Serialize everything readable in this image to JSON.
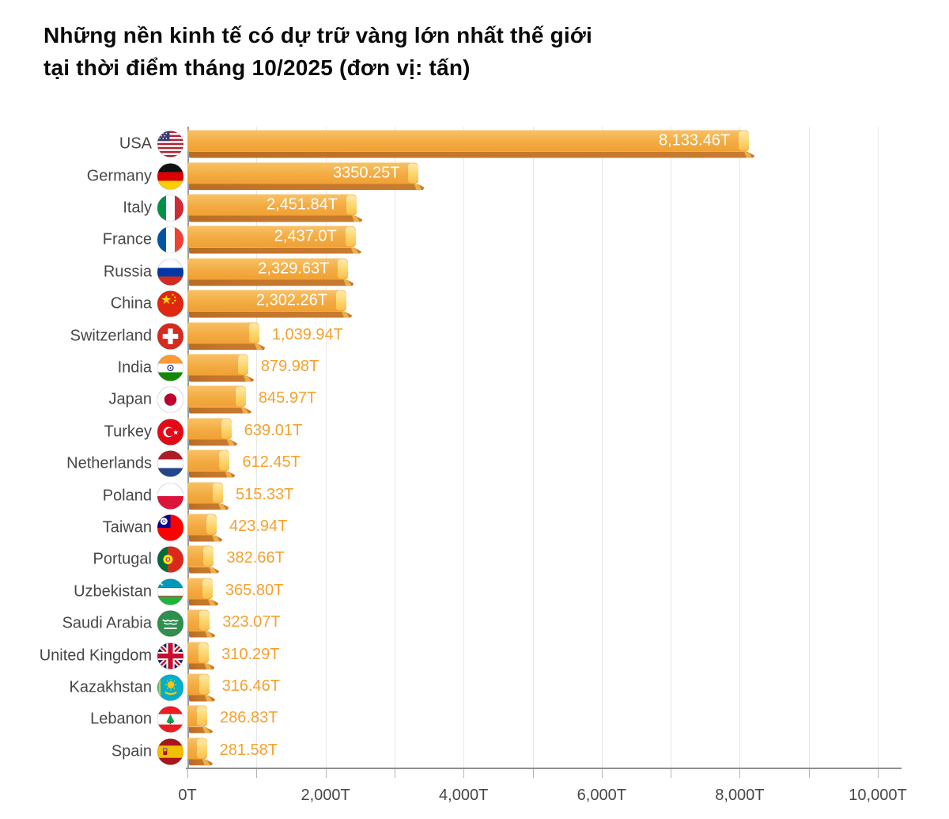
{
  "title": {
    "line1": "Những nền kinh tế có dự trữ vàng lớn nhất thế giới",
    "line2": "tại thời điểm tháng 10/2025 (đơn vị: tấn)"
  },
  "chart_data": {
    "type": "bar",
    "orientation": "horizontal",
    "unit": "tấn (T)",
    "title": "Những nền kinh tế có dự trữ vàng lớn nhất thế giới tại thời điểm tháng 10/2025 (đơn vị: tấn)",
    "xlabel": "",
    "ylabel": "",
    "xlim": [
      0,
      10000
    ],
    "grid": true,
    "grid_step": 1000,
    "x_ticks": [
      {
        "value": 0,
        "label": "0T"
      },
      {
        "value": 2000,
        "label": "2,000T"
      },
      {
        "value": 4000,
        "label": "4,000T"
      },
      {
        "value": 6000,
        "label": "6,000T"
      },
      {
        "value": 8000,
        "label": "8,000T"
      },
      {
        "value": 10000,
        "label": "10,000T"
      }
    ],
    "rows": [
      {
        "country": "USA",
        "flag": "usa",
        "value": 8133.46,
        "value_label": "8,133.46T",
        "label_inside": true
      },
      {
        "country": "Germany",
        "flag": "germany",
        "value": 3350.25,
        "value_label": "3350.25T",
        "label_inside": true
      },
      {
        "country": "Italy",
        "flag": "italy",
        "value": 2451.84,
        "value_label": "2,451.84T",
        "label_inside": true
      },
      {
        "country": "France",
        "flag": "france",
        "value": 2437.0,
        "value_label": "2,437.0T",
        "label_inside": true
      },
      {
        "country": "Russia",
        "flag": "russia",
        "value": 2329.63,
        "value_label": "2,329.63T",
        "label_inside": true
      },
      {
        "country": "China",
        "flag": "china",
        "value": 2302.26,
        "value_label": "2,302.26T",
        "label_inside": true
      },
      {
        "country": "Switzerland",
        "flag": "switzerland",
        "value": 1039.94,
        "value_label": "1,039.94T",
        "label_inside": false
      },
      {
        "country": "India",
        "flag": "india",
        "value": 879.98,
        "value_label": "879.98T",
        "label_inside": false
      },
      {
        "country": "Japan",
        "flag": "japan",
        "value": 845.97,
        "value_label": "845.97T",
        "label_inside": false
      },
      {
        "country": "Turkey",
        "flag": "turkey",
        "value": 639.01,
        "value_label": "639.01T",
        "label_inside": false
      },
      {
        "country": "Netherlands",
        "flag": "netherlands",
        "value": 612.45,
        "value_label": "612.45T",
        "label_inside": false
      },
      {
        "country": "Poland",
        "flag": "poland",
        "value": 515.33,
        "value_label": "515.33T",
        "label_inside": false
      },
      {
        "country": "Taiwan",
        "flag": "taiwan",
        "value": 423.94,
        "value_label": "423.94T",
        "label_inside": false
      },
      {
        "country": "Portugal",
        "flag": "portugal",
        "value": 382.66,
        "value_label": "382.66T",
        "label_inside": false
      },
      {
        "country": "Uzbekistan",
        "flag": "uzbekistan",
        "value": 365.8,
        "value_label": "365.80T",
        "label_inside": false
      },
      {
        "country": "Saudi Arabia",
        "flag": "saudi-arabia",
        "value": 323.07,
        "value_label": "323.07T",
        "label_inside": false
      },
      {
        "country": "United Kingdom",
        "flag": "uk",
        "value": 310.29,
        "value_label": "310.29T",
        "label_inside": false
      },
      {
        "country": "Kazakhstan",
        "flag": "kazakhstan",
        "value": 316.46,
        "value_label": "316.46T",
        "label_inside": false
      },
      {
        "country": "Lebanon",
        "flag": "lebanon",
        "value": 286.83,
        "value_label": "286.83T",
        "label_inside": false
      },
      {
        "country": "Spain",
        "flag": "spain",
        "value": 281.58,
        "value_label": "281.58T",
        "label_inside": false
      }
    ],
    "colors": {
      "bar_face_top": "#f8c266",
      "bar_face_bottom": "#efa134",
      "bar_bevel": "#c4762b",
      "bar_end_cap": "#fcd56c",
      "value_text_inside": "#ffffff",
      "value_text_outside": "#f7a02e",
      "axis_text": "#474747",
      "gridline": "#e7e7e7",
      "background": "#ffffff"
    }
  }
}
